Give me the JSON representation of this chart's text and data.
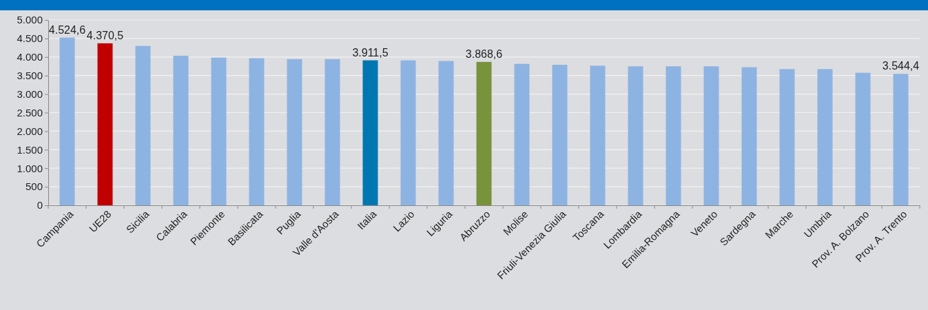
{
  "chart_data": {
    "type": "bar",
    "categories": [
      "Campania",
      "UE28",
      "Sicilia",
      "Calabria",
      "Piemonte",
      "Basilicata",
      "Puglia",
      "Valle d'Aosta",
      "Italia",
      "Lazio",
      "Liguria",
      "Abruzzo",
      "Molise",
      "Friuli-Venezia Giulia",
      "Toscana",
      "Lombardia",
      "Emilia-Romagna",
      "Veneto",
      "Sardegna",
      "Marche",
      "Umbria",
      "Prov. A. Bolzano",
      "Prov. A. Trento"
    ],
    "values": [
      4524.6,
      4370.5,
      4300,
      4035,
      3985,
      3968,
      3943,
      3943,
      3911.5,
      3910,
      3893,
      3868.6,
      3816,
      3791,
      3767,
      3750,
      3750,
      3750,
      3725,
      3675,
      3675,
      3576,
      3544.4
    ],
    "colors": [
      "#8db3e2",
      "#c00000",
      "#8db3e2",
      "#8db3e2",
      "#8db3e2",
      "#8db3e2",
      "#8db3e2",
      "#8db3e2",
      "#0077b0",
      "#8db3e2",
      "#8db3e2",
      "#77933c",
      "#8db3e2",
      "#8db3e2",
      "#8db3e2",
      "#8db3e2",
      "#8db3e2",
      "#8db3e2",
      "#8db3e2",
      "#8db3e2",
      "#8db3e2",
      "#8db3e2",
      "#8db3e2"
    ],
    "value_labels": [
      "4.524,6",
      "4.370,5",
      null,
      null,
      null,
      null,
      null,
      null,
      "3.911,5",
      null,
      null,
      "3.868,6",
      null,
      null,
      null,
      null,
      null,
      null,
      null,
      null,
      null,
      null,
      "3.544,4"
    ],
    "ylim": [
      0,
      5000
    ],
    "yticks": [
      {
        "value": 0,
        "label": "0"
      },
      {
        "value": 500,
        "label": "500"
      },
      {
        "value": 1000,
        "label": "1.000"
      },
      {
        "value": 1500,
        "label": "1.500"
      },
      {
        "value": 2000,
        "label": "2.000"
      },
      {
        "value": 2500,
        "label": "2.500"
      },
      {
        "value": 3000,
        "label": "3.000"
      },
      {
        "value": 3500,
        "label": "3.500"
      },
      {
        "value": 4000,
        "label": "4.000"
      },
      {
        "value": 4500,
        "label": "4.500"
      },
      {
        "value": 5000,
        "label": "5.000"
      }
    ],
    "grid": "y"
  }
}
